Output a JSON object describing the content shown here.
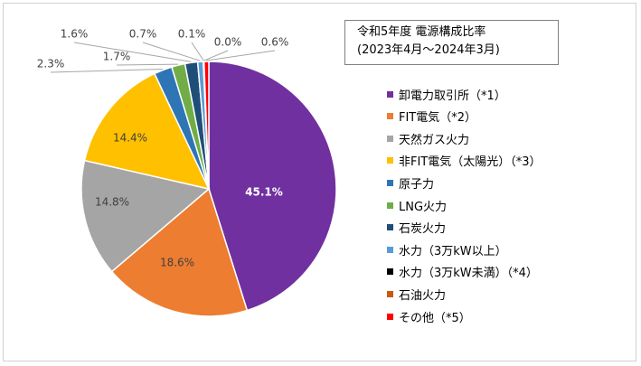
{
  "chart_data": {
    "type": "pie",
    "title": "令和5年度 電源構成比率",
    "subtitle": "(2023年4月～2024年3月)",
    "slices": [
      {
        "name": "卸電力取引所（*1）",
        "value": 45.1,
        "label": "45.1%",
        "color": "#7030a0"
      },
      {
        "name": "FIT電気（*2）",
        "value": 18.6,
        "label": "18.6%",
        "color": "#ed7d31"
      },
      {
        "name": "天然ガス火力",
        "value": 14.8,
        "label": "14.8%",
        "color": "#a5a5a5"
      },
      {
        "name": "非FIT電気（太陽光）（*3）",
        "value": 14.4,
        "label": "14.4%",
        "color": "#ffc000"
      },
      {
        "name": "原子力",
        "value": 2.3,
        "label": "2.3%",
        "color": "#2e75b6"
      },
      {
        "name": "LNG火力",
        "value": 1.7,
        "label": "1.7%",
        "color": "#70ad47"
      },
      {
        "name": "石炭火力",
        "value": 1.6,
        "label": "1.6%",
        "color": "#1f4e79"
      },
      {
        "name": "水力（3万kW以上）",
        "value": 0.7,
        "label": "0.7%",
        "color": "#5b9bd5"
      },
      {
        "name": "水力（3万kW未満）（*4）",
        "value": 0.1,
        "label": "0.1%",
        "color": "#000000"
      },
      {
        "name": "石油火力",
        "value": 0.0,
        "label": "0.0%",
        "color": "#c55a11"
      },
      {
        "name": "その他（*5）",
        "value": 0.6,
        "label": "0.6%",
        "color": "#ff0000"
      }
    ],
    "legend_position": "right"
  }
}
